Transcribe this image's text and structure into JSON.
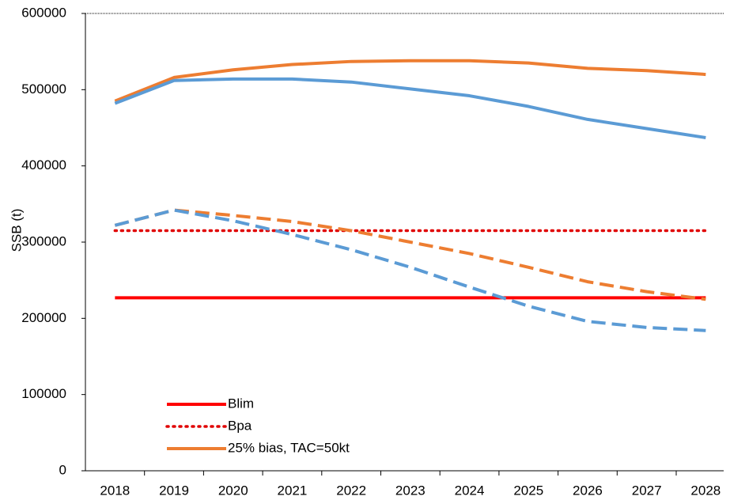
{
  "chart_data": {
    "type": "line",
    "y_label": "SSB (t)",
    "categories": [
      "2018",
      "2019",
      "2020",
      "2021",
      "2022",
      "2023",
      "2024",
      "2025",
      "2026",
      "2027",
      "2028"
    ],
    "series": [
      {
        "name": "Blim",
        "color": "#ff0000",
        "dash": "solid",
        "values": [
          227000,
          227000,
          227000,
          227000,
          227000,
          227000,
          227000,
          227000,
          227000,
          227000,
          227000
        ]
      },
      {
        "name": "Bpa",
        "color": "#e00000",
        "dash": "dotted",
        "values": [
          315000,
          315000,
          315000,
          315000,
          315000,
          315000,
          315000,
          315000,
          315000,
          315000,
          315000
        ]
      },
      {
        "name": "25% bias, TAC=50kt",
        "color": "#ed7d31",
        "dash": "solid",
        "values": [
          485000,
          516000,
          526000,
          533000,
          537000,
          538000,
          538000,
          535000,
          528000,
          525000,
          520000
        ]
      },
      {
        "color": "#5b9bd5",
        "dash": "solid",
        "values": [
          482000,
          512000,
          514000,
          514000,
          510000,
          501000,
          492000,
          478000,
          461000,
          449000,
          437000
        ]
      },
      {
        "color": "#ed7d31",
        "dash": "dashed",
        "values": [
          322000,
          342000,
          335000,
          327000,
          315000,
          300000,
          285000,
          267000,
          248000,
          235000,
          225000
        ]
      },
      {
        "color": "#5b9bd5",
        "dash": "dashed",
        "values": [
          322000,
          342000,
          328000,
          310000,
          290000,
          267000,
          241000,
          216000,
          196000,
          188000,
          184000
        ]
      }
    ],
    "ylim": [
      0,
      600000
    ],
    "yticks": [
      0,
      100000,
      200000,
      300000,
      400000,
      500000,
      600000
    ]
  }
}
